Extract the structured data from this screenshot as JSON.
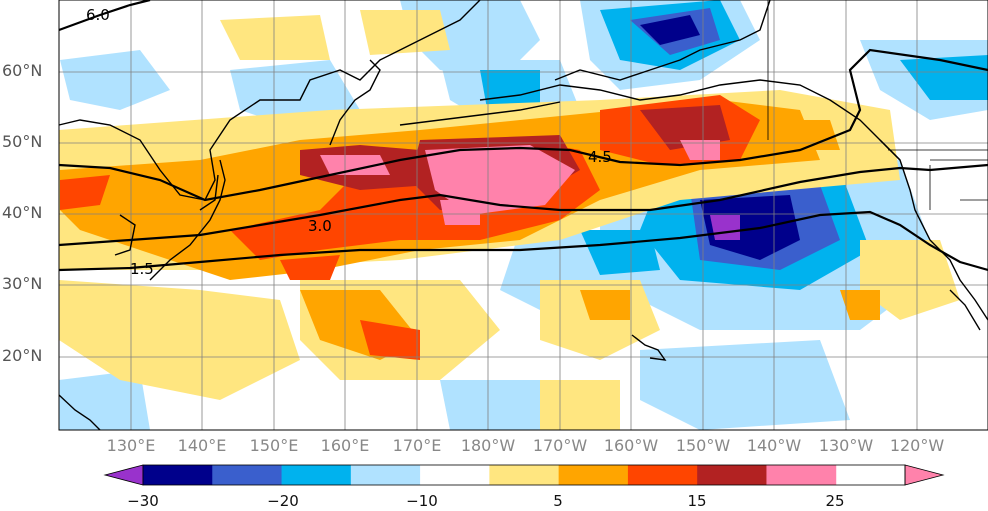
{
  "map": {
    "lat_labels": [
      "60°N",
      "50°N",
      "40°N",
      "30°N",
      "20°N"
    ],
    "lon_labels": [
      "130°E",
      "140°E",
      "150°E",
      "160°E",
      "170°E",
      "180°W",
      "170°W",
      "160°W",
      "150°W",
      "140°W",
      "130°W",
      "120°W"
    ],
    "contour_labels": [
      "6.0",
      "4.5",
      "3.0",
      "1.5"
    ],
    "shading_colors": {
      "v_neg30": "#9932cc",
      "v_neg25": "#00008b",
      "v_neg20": "#3a5fcd",
      "v_neg15": "#00b2ee",
      "v_neg10": "#b0e2ff",
      "v_0": "#ffffff",
      "v_5": "#ffe680",
      "v_10": "#ffa500",
      "v_15": "#ff4500",
      "v_20": "#b22222",
      "v_25": "#ff82ab"
    }
  },
  "colorbar": {
    "ticks": [
      "−30",
      "−20",
      "−10",
      "5",
      "15",
      "25"
    ],
    "colors": [
      "#9932cc",
      "#00008b",
      "#3a5fcd",
      "#00b2ee",
      "#b0e2ff",
      "#ffffff",
      "#ffe680",
      "#ffa500",
      "#ff4500",
      "#b22222",
      "#ff82ab",
      "#ff82ab"
    ]
  }
}
